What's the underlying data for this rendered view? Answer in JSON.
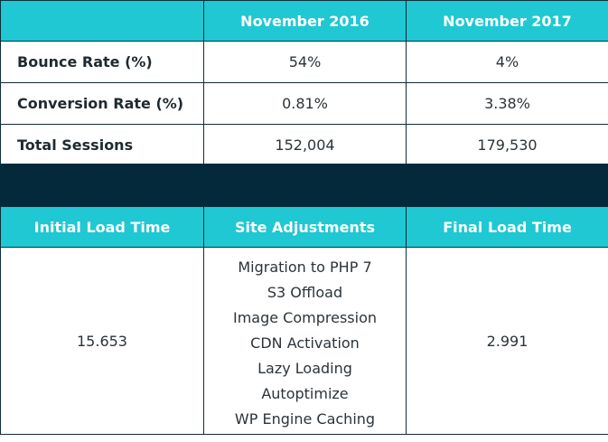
{
  "comparison_table": {
    "headers": [
      "",
      "November 2016",
      "November 2017"
    ],
    "rows": [
      {
        "label": "Bounce Rate (%)",
        "values": [
          "54%",
          "4%"
        ]
      },
      {
        "label": "Conversion Rate (%)",
        "values": [
          "0.81%",
          "3.38%"
        ]
      },
      {
        "label": "Total Sessions",
        "values": [
          "152,004",
          "179,530"
        ]
      }
    ]
  },
  "load_time_table": {
    "headers": [
      "Initial Load Time",
      "Site Adjustments",
      "Final Load Time"
    ],
    "initial_load_time": "15.653",
    "final_load_time": "2.991",
    "site_adjustments": [
      "Migration to PHP 7",
      "S3 Offload",
      "Image Compression",
      "CDN Activation",
      "Lazy Loading",
      "Autoptimize",
      "WP Engine Caching"
    ]
  },
  "colors": {
    "header_bg": "#1fc8d3",
    "divider_bg": "#04293a",
    "border": "#0f2d3a"
  }
}
